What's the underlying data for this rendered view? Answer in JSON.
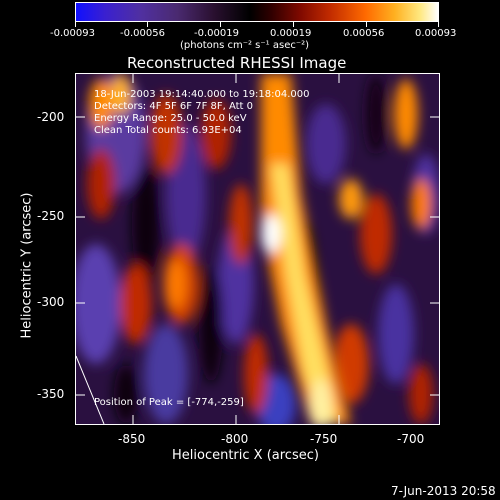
{
  "colorbar": {
    "tick_labels": [
      "-0.00093",
      "-0.00056",
      "-0.00019",
      "0.00019",
      "0.00056",
      "0.00093"
    ],
    "units": "(photons cm⁻² s⁻¹ asec⁻²)",
    "palette": [
      "#0000ff",
      "#3a1fb0",
      "#4a2a80",
      "#2a1030",
      "#000000",
      "#3a0000",
      "#8a0f00",
      "#d23a00",
      "#ff8a00",
      "#ffd040",
      "#ffffff"
    ]
  },
  "plot": {
    "title": "Reconstructed RHESSI Image",
    "xlabel": "Heliocentric X (arcsec)",
    "ylabel": "Heliocentric Y (arcsec)",
    "x_ticks": [
      "-850",
      "-800",
      "-750",
      "-700"
    ],
    "y_ticks": [
      "-200",
      "-250",
      "-300",
      "-350"
    ],
    "info_lines": [
      "18-Jun-2003 19:14:40.000 to 19:18:04.000",
      "Detectors: 4F 5F 6F 7F 8F, Att 0",
      "Energy Range: 25.0 - 50.0 keV",
      "Clean     Total counts: 6.93E+04"
    ],
    "peak_label": "Position of Peak = [-774,-259]"
  },
  "footer": {
    "timestamp": "7-Jun-2013 20:58"
  }
}
